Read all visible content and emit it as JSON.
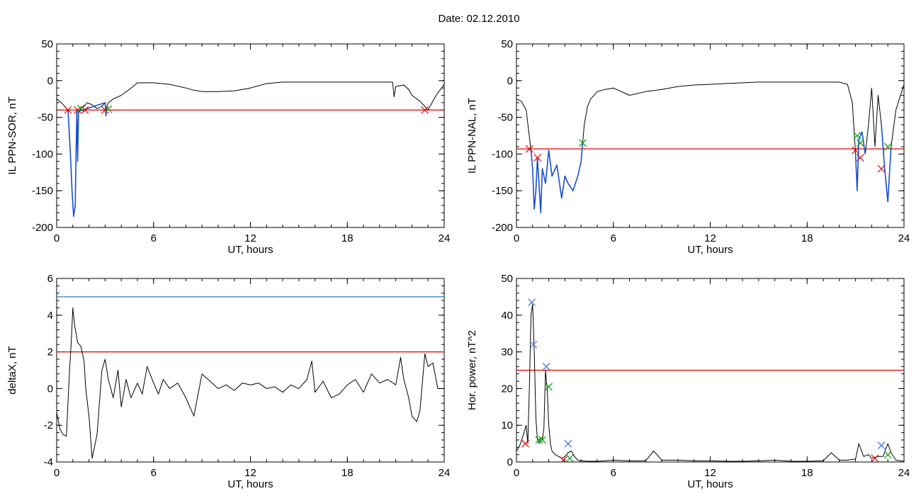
{
  "date_label": "Date:  02.12.2010",
  "chart_data": [
    {
      "id": "sor",
      "type": "line",
      "xlabel": "UT, hours",
      "ylabel": "IL PPN-SOR, nT",
      "xlim": [
        0,
        24
      ],
      "ylim": [
        -200,
        50
      ],
      "xticks": [
        0,
        6,
        12,
        18,
        24
      ],
      "yticks": [
        -200,
        -150,
        -100,
        -50,
        0,
        50
      ],
      "grid": false,
      "series": [
        {
          "x": [
            0,
            0.3,
            0.5,
            0.7,
            0.85,
            0.95,
            1.05,
            1.15,
            1.2,
            1.25,
            1.3,
            1.35,
            1.5,
            1.7,
            1.9,
            2.2,
            2.5,
            2.8,
            3.0,
            3.05,
            3.1,
            3.2,
            3.5,
            4,
            4.5,
            5,
            6,
            7,
            8,
            8.5,
            9,
            9.5,
            10,
            11,
            12,
            13,
            14,
            16,
            18,
            19,
            20,
            20.5,
            20.8,
            20.9,
            21.0,
            21.5,
            21.8,
            22,
            22.5,
            22.8,
            23,
            23.5,
            24
          ],
          "y": [
            -25,
            -30,
            -35,
            -40,
            -100,
            -150,
            -185,
            -170,
            -100,
            -40,
            -110,
            -42,
            -38,
            -35,
            -30,
            -33,
            -38,
            -35,
            -30,
            -48,
            -35,
            -30,
            -25,
            -20,
            -12,
            -3,
            -3,
            -5,
            -10,
            -13,
            -15,
            -15,
            -15,
            -14,
            -10,
            -4,
            -2,
            -2,
            -2,
            -2,
            -2,
            -2,
            -2,
            -22,
            -8,
            -6,
            -12,
            -20,
            -28,
            -35,
            -40,
            -20,
            -5
          ],
          "color": "#000000"
        },
        {
          "x": [
            0.7,
            0.85,
            0.95,
            1.05,
            1.15,
            1.2,
            1.25,
            1.3,
            1.35,
            3.0,
            3.05,
            3.1
          ],
          "y": [
            -40,
            -100,
            -150,
            -185,
            -170,
            -100,
            -40,
            -110,
            -42,
            -30,
            -48,
            -35
          ],
          "color": "#1a4fd0"
        }
      ],
      "thresholds": [
        {
          "y": -40,
          "color": "#e00000"
        }
      ],
      "markers": [
        {
          "x": 0.7,
          "y": -40,
          "color": "#e00000"
        },
        {
          "x": 1.3,
          "y": -40,
          "color": "#e00000"
        },
        {
          "x": 1.5,
          "y": -38,
          "color": "#00a000"
        },
        {
          "x": 1.75,
          "y": -40,
          "color": "#e00000"
        },
        {
          "x": 3.0,
          "y": -40,
          "color": "#e00000"
        },
        {
          "x": 3.2,
          "y": -39,
          "color": "#00a000"
        },
        {
          "x": 22.8,
          "y": -40,
          "color": "#e00000"
        }
      ]
    },
    {
      "id": "nal",
      "type": "line",
      "xlabel": "UT, hours",
      "ylabel": "IL PPN-NAL, nT",
      "xlim": [
        0,
        24
      ],
      "ylim": [
        -200,
        50
      ],
      "xticks": [
        0,
        6,
        12,
        18,
        24
      ],
      "yticks": [
        -200,
        -150,
        -100,
        -50,
        0,
        50
      ],
      "grid": false,
      "series": [
        {
          "x": [
            0,
            0.3,
            0.6,
            0.9,
            1.0,
            1.1,
            1.2,
            1.3,
            1.5,
            1.6,
            1.8,
            2.0,
            2.2,
            2.5,
            2.8,
            3.0,
            3.2,
            3.5,
            3.8,
            4.0,
            4.1,
            4.2,
            4.4,
            4.6,
            5.0,
            5.5,
            6,
            7,
            8,
            9,
            10,
            11,
            12,
            13,
            14,
            15,
            16,
            17,
            18,
            19,
            20,
            20.5,
            20.8,
            21.0,
            21.1,
            21.2,
            21.4,
            21.6,
            21.8,
            22.0,
            22.2,
            22.4,
            22.6,
            22.8,
            23.0,
            23.2,
            23.5,
            24
          ],
          "y": [
            -25,
            -28,
            -40,
            -95,
            -120,
            -175,
            -150,
            -105,
            -180,
            -120,
            -140,
            -95,
            -130,
            -115,
            -160,
            -130,
            -140,
            -150,
            -130,
            -110,
            -85,
            -60,
            -35,
            -25,
            -15,
            -12,
            -10,
            -20,
            -15,
            -12,
            -8,
            -6,
            -5,
            -4,
            -3,
            -2,
            -2,
            -2,
            -2,
            -2,
            -2,
            -5,
            -30,
            -100,
            -150,
            -80,
            -70,
            -100,
            -60,
            -10,
            -90,
            -20,
            -60,
            -120,
            -165,
            -90,
            -40,
            -5
          ],
          "color": "#000000"
        },
        {
          "x": [
            0.9,
            1.0,
            1.1,
            1.2,
            1.3,
            1.5,
            1.6,
            1.8,
            2.0,
            2.2,
            2.5,
            2.8,
            3.0,
            3.2,
            3.5,
            3.8,
            4.0,
            4.1
          ],
          "y": [
            -95,
            -120,
            -175,
            -150,
            -105,
            -180,
            -120,
            -140,
            -95,
            -130,
            -115,
            -160,
            -130,
            -140,
            -150,
            -130,
            -110,
            -85
          ],
          "color": "#1a4fd0"
        },
        {
          "x": [
            21.0,
            21.1,
            21.2,
            21.4,
            21.6
          ],
          "y": [
            -100,
            -150,
            -80,
            -70,
            -100
          ],
          "color": "#1a4fd0"
        },
        {
          "x": [
            22.6,
            22.8,
            23.0,
            23.2
          ],
          "y": [
            -60,
            -120,
            -165,
            -90
          ],
          "color": "#1a4fd0"
        }
      ],
      "thresholds": [
        {
          "y": -93,
          "color": "#e00000"
        }
      ],
      "markers": [
        {
          "x": 0.8,
          "y": -93,
          "color": "#e00000"
        },
        {
          "x": 1.3,
          "y": -105,
          "color": "#e00000"
        },
        {
          "x": 4.1,
          "y": -85,
          "color": "#00a000"
        },
        {
          "x": 21.0,
          "y": -95,
          "color": "#e00000"
        },
        {
          "x": 21.1,
          "y": -75,
          "color": "#00a000"
        },
        {
          "x": 21.3,
          "y": -85,
          "color": "#00a000"
        },
        {
          "x": 21.3,
          "y": -105,
          "color": "#e00000"
        },
        {
          "x": 22.6,
          "y": -120,
          "color": "#e00000"
        },
        {
          "x": 23.0,
          "y": -90,
          "color": "#00a000"
        }
      ]
    },
    {
      "id": "deltax",
      "type": "line",
      "xlabel": "UT, hours",
      "ylabel": "deltaX, nT",
      "xlim": [
        0,
        24
      ],
      "ylim": [
        -4,
        6
      ],
      "xticks": [
        0,
        6,
        12,
        18,
        24
      ],
      "yticks": [
        -4,
        -2,
        0,
        2,
        4,
        6
      ],
      "grid": false,
      "series": [
        {
          "x": [
            0,
            0.2,
            0.4,
            0.6,
            0.8,
            0.9,
            1.0,
            1.1,
            1.3,
            1.5,
            1.7,
            1.8,
            2.0,
            2.2,
            2.5,
            2.8,
            3.0,
            3.2,
            3.5,
            3.8,
            4.0,
            4.3,
            4.6,
            5.0,
            5.3,
            5.6,
            6.0,
            6.3,
            6.6,
            7.0,
            7.5,
            8.0,
            8.5,
            9.0,
            9.5,
            10,
            10.5,
            11,
            11.5,
            12,
            12.5,
            13,
            13.5,
            14,
            14.5,
            15,
            15.5,
            15.8,
            16.0,
            16.5,
            17.0,
            17.5,
            18.0,
            18.5,
            19.0,
            19.5,
            20.0,
            20.5,
            21.0,
            21.3,
            21.5,
            21.8,
            22.0,
            22.3,
            22.5,
            22.8,
            23.0,
            23.3,
            23.6,
            24
          ],
          "y": [
            -1.3,
            -2.2,
            -2.5,
            -2.6,
            1.0,
            2.5,
            4.4,
            3.5,
            2.5,
            2.3,
            1.5,
            0,
            -1.5,
            -3.8,
            -2.5,
            1.0,
            1.6,
            0.5,
            -0.5,
            1.0,
            -1.0,
            0.5,
            -0.5,
            0.3,
            -0.3,
            1.2,
            0.3,
            -0.3,
            0.5,
            0,
            0.3,
            -0.5,
            -1.5,
            0.8,
            0.4,
            0,
            0.2,
            -0.1,
            0.3,
            0.2,
            0.3,
            0,
            0.1,
            -0.2,
            0.2,
            0,
            0.5,
            1.5,
            -0.2,
            0.4,
            -0.5,
            -0.3,
            0.2,
            0.5,
            -0.2,
            0.8,
            0.3,
            0.5,
            0.2,
            1.7,
            0.5,
            -0.5,
            -1.5,
            -1.8,
            -1.2,
            1.9,
            1.2,
            1.4,
            0,
            0
          ],
          "color": "#000000"
        }
      ],
      "thresholds": [
        {
          "y": 5,
          "color": "#2a7db5"
        },
        {
          "y": 2,
          "color": "#e00000"
        }
      ],
      "markers": []
    },
    {
      "id": "power",
      "type": "line",
      "xlabel": "UT, hours",
      "ylabel": "Hor. power, nT^2",
      "xlim": [
        0,
        24
      ],
      "ylim": [
        0,
        50
      ],
      "xticks": [
        0,
        6,
        12,
        18,
        24
      ],
      "yticks": [
        0,
        10,
        20,
        30,
        40,
        50
      ],
      "grid": false,
      "series": [
        {
          "x": [
            0,
            0.2,
            0.4,
            0.6,
            0.7,
            0.8,
            0.9,
            1.0,
            1.1,
            1.2,
            1.3,
            1.4,
            1.5,
            1.6,
            1.7,
            1.8,
            1.9,
            2.0,
            2.1,
            2.2,
            2.4,
            2.6,
            2.8,
            3.0,
            3.2,
            3.4,
            3.6,
            3.8,
            4.0,
            4.5,
            5.0,
            6,
            7,
            8,
            8.5,
            9,
            10,
            11,
            12,
            13,
            14,
            15,
            16,
            17,
            18,
            19,
            19.5,
            20,
            20.5,
            21,
            21.2,
            21.5,
            21.8,
            22,
            22.4,
            22.7,
            23,
            23.2,
            23.5,
            24
          ],
          "y": [
            3,
            4.5,
            7,
            10,
            5,
            20,
            40,
            43,
            30,
            12,
            6,
            5,
            6.5,
            6,
            9,
            25,
            20,
            10,
            5,
            3,
            2,
            1.5,
            1.0,
            1.5,
            2.5,
            3,
            1.5,
            0.5,
            0.3,
            0.2,
            0.2,
            0.5,
            0.3,
            0.3,
            3,
            0.5,
            0.5,
            0.3,
            0.3,
            0.2,
            0.2,
            0.3,
            0.5,
            0.2,
            0.2,
            0.3,
            2.5,
            0.5,
            0.5,
            0.8,
            5,
            1.5,
            2,
            1,
            1.5,
            1.5,
            5,
            2.5,
            0.5,
            0.2
          ],
          "color": "#000000"
        }
      ],
      "thresholds": [
        {
          "y": 25,
          "color": "#e00000"
        }
      ],
      "markers": [
        {
          "x": 0.55,
          "y": 5,
          "color": "#e00000"
        },
        {
          "x": 0.95,
          "y": 43.5,
          "color": "#3a6fe0"
        },
        {
          "x": 1.05,
          "y": 32,
          "color": "#3a6fe0"
        },
        {
          "x": 1.4,
          "y": 6,
          "color": "#00a000"
        },
        {
          "x": 1.6,
          "y": 6,
          "color": "#00a000"
        },
        {
          "x": 1.85,
          "y": 26,
          "color": "#3a6fe0"
        },
        {
          "x": 2.0,
          "y": 20.5,
          "color": "#00a000"
        },
        {
          "x": 2.9,
          "y": 0.5,
          "color": "#e00000"
        },
        {
          "x": 3.2,
          "y": 5,
          "color": "#3a6fe0"
        },
        {
          "x": 3.3,
          "y": 1,
          "color": "#00a000"
        },
        {
          "x": 22.2,
          "y": 1,
          "color": "#e00000"
        },
        {
          "x": 22.6,
          "y": 4.5,
          "color": "#3a6fe0"
        },
        {
          "x": 23.0,
          "y": 2,
          "color": "#00a000"
        }
      ]
    }
  ]
}
